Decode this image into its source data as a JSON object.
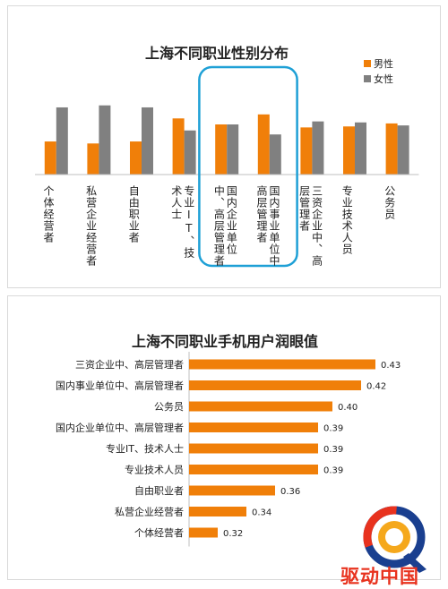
{
  "chart_data": [
    {
      "type": "bar",
      "title": "上海不同职业性别分布",
      "categories": [
        "个体经营者",
        "私营企业经营者",
        "自由职业者",
        "专业IT、技术人士",
        "国内企业单位中、高层管理者",
        "国内事业单位中高层管理者",
        "三资企业中、高层管理者",
        "专业技术人员",
        "公务员"
      ],
      "category_labels": [
        "个体经营者",
        "私营企业经营者",
        "自由职业者",
        "专业IT、技术人士",
        "国内企业单位中、高层管理者",
        "国内事业单位中高层管理者",
        "三资企业中、高层管理者",
        "专业技术人员",
        "公务员"
      ],
      "series": [
        {
          "name": "男性",
          "color": "#f07f09",
          "values": [
            33,
            31,
            33,
            56,
            50,
            60,
            47,
            48,
            51
          ]
        },
        {
          "name": "女性",
          "color": "#808080",
          "values": [
            67,
            69,
            67,
            44,
            50,
            40,
            53,
            52,
            49
          ]
        }
      ],
      "ylim": [
        0,
        100
      ],
      "grid": false,
      "legend": "top-right",
      "highlight": "rounded box around 国内企业单位中、高层管理者 and 国内事业单位中高层管理者",
      "highlight_color": "#1ea0d6"
    },
    {
      "type": "bar",
      "orientation": "horizontal",
      "title": "上海不同职业手机用户润眼值",
      "categories": [
        "三资企业中、高层管理者",
        "国内事业单位中、高层管理者",
        "公务员",
        "国内企业单位中、高层管理者",
        "专业IT、技术人士",
        "专业技术人员",
        "自由职业者",
        "私营企业经营者",
        "个体经营者"
      ],
      "values": [
        0.43,
        0.42,
        0.4,
        0.39,
        0.39,
        0.39,
        0.36,
        0.34,
        0.32
      ],
      "value_labels": [
        "0.43",
        "0.42",
        "0.40",
        "0.39",
        "0.39",
        "0.39",
        "0.36",
        "0.34",
        "0.32"
      ],
      "color": "#f07f09",
      "xlim": [
        0.3,
        0.44
      ]
    }
  ],
  "watermark": {
    "text": "驱动中国"
  }
}
